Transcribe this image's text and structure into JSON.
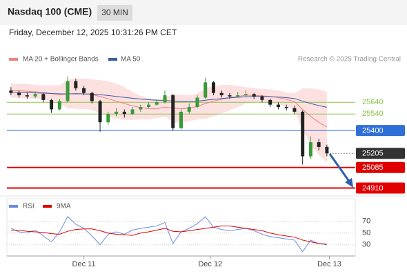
{
  "chart_data": {
    "type": "candlestick",
    "title": "Nasdaq 100 (CME)",
    "timeframe": "30 MIN",
    "timestamp": "Friday, December 12, 2025 10:31:26 PM CET",
    "source": "Research © 2025 Trading Central",
    "xlim": [
      -0.5,
      42.5
    ],
    "xticks": [
      {
        "value": 9,
        "label": "Dec 11"
      },
      {
        "value": 24.6,
        "label": "Dec 12"
      },
      {
        "value": 39.3,
        "label": "Dec 13"
      }
    ],
    "ylim": [
      24860,
      26100
    ],
    "up_color": "#3a9a3a",
    "down_color": "#222222",
    "open": [
      25740,
      25720,
      25700,
      25690,
      25710,
      25660,
      25580,
      25650,
      25820,
      25760,
      25720,
      25650,
      25470,
      25540,
      25560,
      25540,
      25580,
      25600,
      25620,
      25640,
      25700,
      25420,
      25560,
      25600,
      25680,
      25810,
      25720,
      25700,
      25690,
      25700,
      25710,
      25690,
      25660,
      25620,
      25600,
      25590,
      25560,
      25180,
      25300,
      25260
    ],
    "high": [
      25770,
      25740,
      25725,
      25730,
      25720,
      25670,
      25670,
      25860,
      25840,
      25780,
      25730,
      25660,
      25560,
      25590,
      25580,
      25600,
      25620,
      25640,
      25670,
      25740,
      25710,
      25580,
      25630,
      25700,
      25850,
      25820,
      25740,
      25720,
      25730,
      25740,
      25720,
      25700,
      25670,
      25640,
      25620,
      25610,
      25570,
      25350,
      25330,
      25280
    ],
    "low": [
      25700,
      25680,
      25670,
      25675,
      25640,
      25550,
      25570,
      25640,
      25740,
      25700,
      25630,
      25390,
      25450,
      25520,
      25510,
      25530,
      25560,
      25590,
      25610,
      25630,
      25400,
      25410,
      25540,
      25590,
      25670,
      25700,
      25680,
      25670,
      25680,
      25690,
      25670,
      25640,
      25600,
      25580,
      25570,
      25540,
      25110,
      25160,
      25230,
      25180
    ],
    "close": [
      25720,
      25700,
      25690,
      25710,
      25660,
      25580,
      25650,
      25820,
      25760,
      25720,
      25650,
      25470,
      25540,
      25560,
      25540,
      25580,
      25600,
      25620,
      25640,
      25700,
      25420,
      25560,
      25600,
      25680,
      25810,
      25720,
      25700,
      25690,
      25700,
      25710,
      25690,
      25660,
      25620,
      25600,
      25590,
      25560,
      25180,
      25300,
      25260,
      25205
    ],
    "series": [
      {
        "name": "MA 20 + Bollinger Bands",
        "color": "#f08080",
        "band_color": "#fde0e0",
        "values": [
          25740,
          25738,
          25735,
          25730,
          25725,
          25715,
          25705,
          25710,
          25715,
          25712,
          25705,
          25690,
          25670,
          25650,
          25630,
          25610,
          25595,
          25585,
          25585,
          25600,
          25590,
          25585,
          25590,
          25605,
          25630,
          25650,
          25665,
          25680,
          25690,
          25700,
          25700,
          25695,
          25690,
          25680,
          25665,
          25645,
          25580,
          25520,
          25470,
          25430
        ],
        "upper": [
          25800,
          25798,
          25795,
          25790,
          25785,
          25785,
          25785,
          25830,
          25845,
          25842,
          25835,
          25830,
          25820,
          25800,
          25770,
          25730,
          25695,
          25675,
          25665,
          25680,
          25710,
          25705,
          25700,
          25715,
          25760,
          25780,
          25785,
          25790,
          25780,
          25770,
          25760,
          25755,
          25750,
          25740,
          25725,
          25715,
          25760,
          25760,
          25750,
          25730
        ],
        "lower": [
          25680,
          25678,
          25675,
          25670,
          25665,
          25645,
          25625,
          25590,
          25585,
          25582,
          25575,
          25550,
          25520,
          25500,
          25490,
          25490,
          25495,
          25495,
          25505,
          25520,
          25470,
          25465,
          25480,
          25495,
          25500,
          25520,
          25545,
          25570,
          25600,
          25630,
          25640,
          25635,
          25630,
          25620,
          25605,
          25575,
          25400,
          25280,
          25190,
          25130
        ]
      },
      {
        "name": "MA 50",
        "color": "#3b5ba5",
        "values": [
          25725,
          25724,
          25722,
          25720,
          25718,
          25715,
          25712,
          25712,
          25713,
          25712,
          25710,
          25705,
          25698,
          25690,
          25682,
          25675,
          25668,
          25662,
          25658,
          25656,
          25650,
          25646,
          25646,
          25650,
          25658,
          25665,
          25672,
          25678,
          25683,
          25687,
          25690,
          25690,
          25688,
          25685,
          25680,
          25672,
          25650,
          25630,
          25612,
          25598
        ]
      }
    ],
    "levels": [
      {
        "value": 25640,
        "color": "#8bc34a",
        "line": "solid",
        "label": "text"
      },
      {
        "value": 25540,
        "color": "#8bc34a",
        "line": "solid",
        "label": "text"
      },
      {
        "value": 25400,
        "color": "#2f6fd8",
        "line": "solid",
        "label": "box"
      },
      {
        "value": 25205,
        "color": "#333333",
        "line": "dotted",
        "label": "box"
      },
      {
        "value": 25085,
        "color": "#e00000",
        "line": "thick",
        "label": "box"
      },
      {
        "value": 24910,
        "color": "#e00000",
        "line": "thick",
        "label": "box"
      }
    ],
    "rsi": {
      "ylim": [
        12,
        98
      ],
      "yticks": [
        70,
        50,
        30
      ],
      "series": [
        {
          "name": "RSI",
          "color": "#6b8be0",
          "values": [
            58,
            52,
            50,
            55,
            45,
            35,
            52,
            78,
            65,
            58,
            45,
            30,
            48,
            52,
            48,
            55,
            58,
            60,
            62,
            68,
            32,
            52,
            58,
            66,
            78,
            60,
            56,
            54,
            56,
            58,
            54,
            48,
            44,
            42,
            40,
            38,
            18,
            38,
            32,
            30
          ]
        },
        {
          "name": "9MA",
          "color": "#e00000",
          "values": [
            55,
            55,
            53,
            52,
            51,
            49,
            48,
            53,
            56,
            57,
            57,
            54,
            50,
            48,
            47,
            46,
            50,
            52,
            55,
            58,
            53,
            52,
            54,
            56,
            58,
            60,
            62,
            62,
            60,
            58,
            56,
            54,
            50,
            47,
            45,
            43,
            38,
            35,
            32,
            31
          ]
        }
      ]
    }
  }
}
